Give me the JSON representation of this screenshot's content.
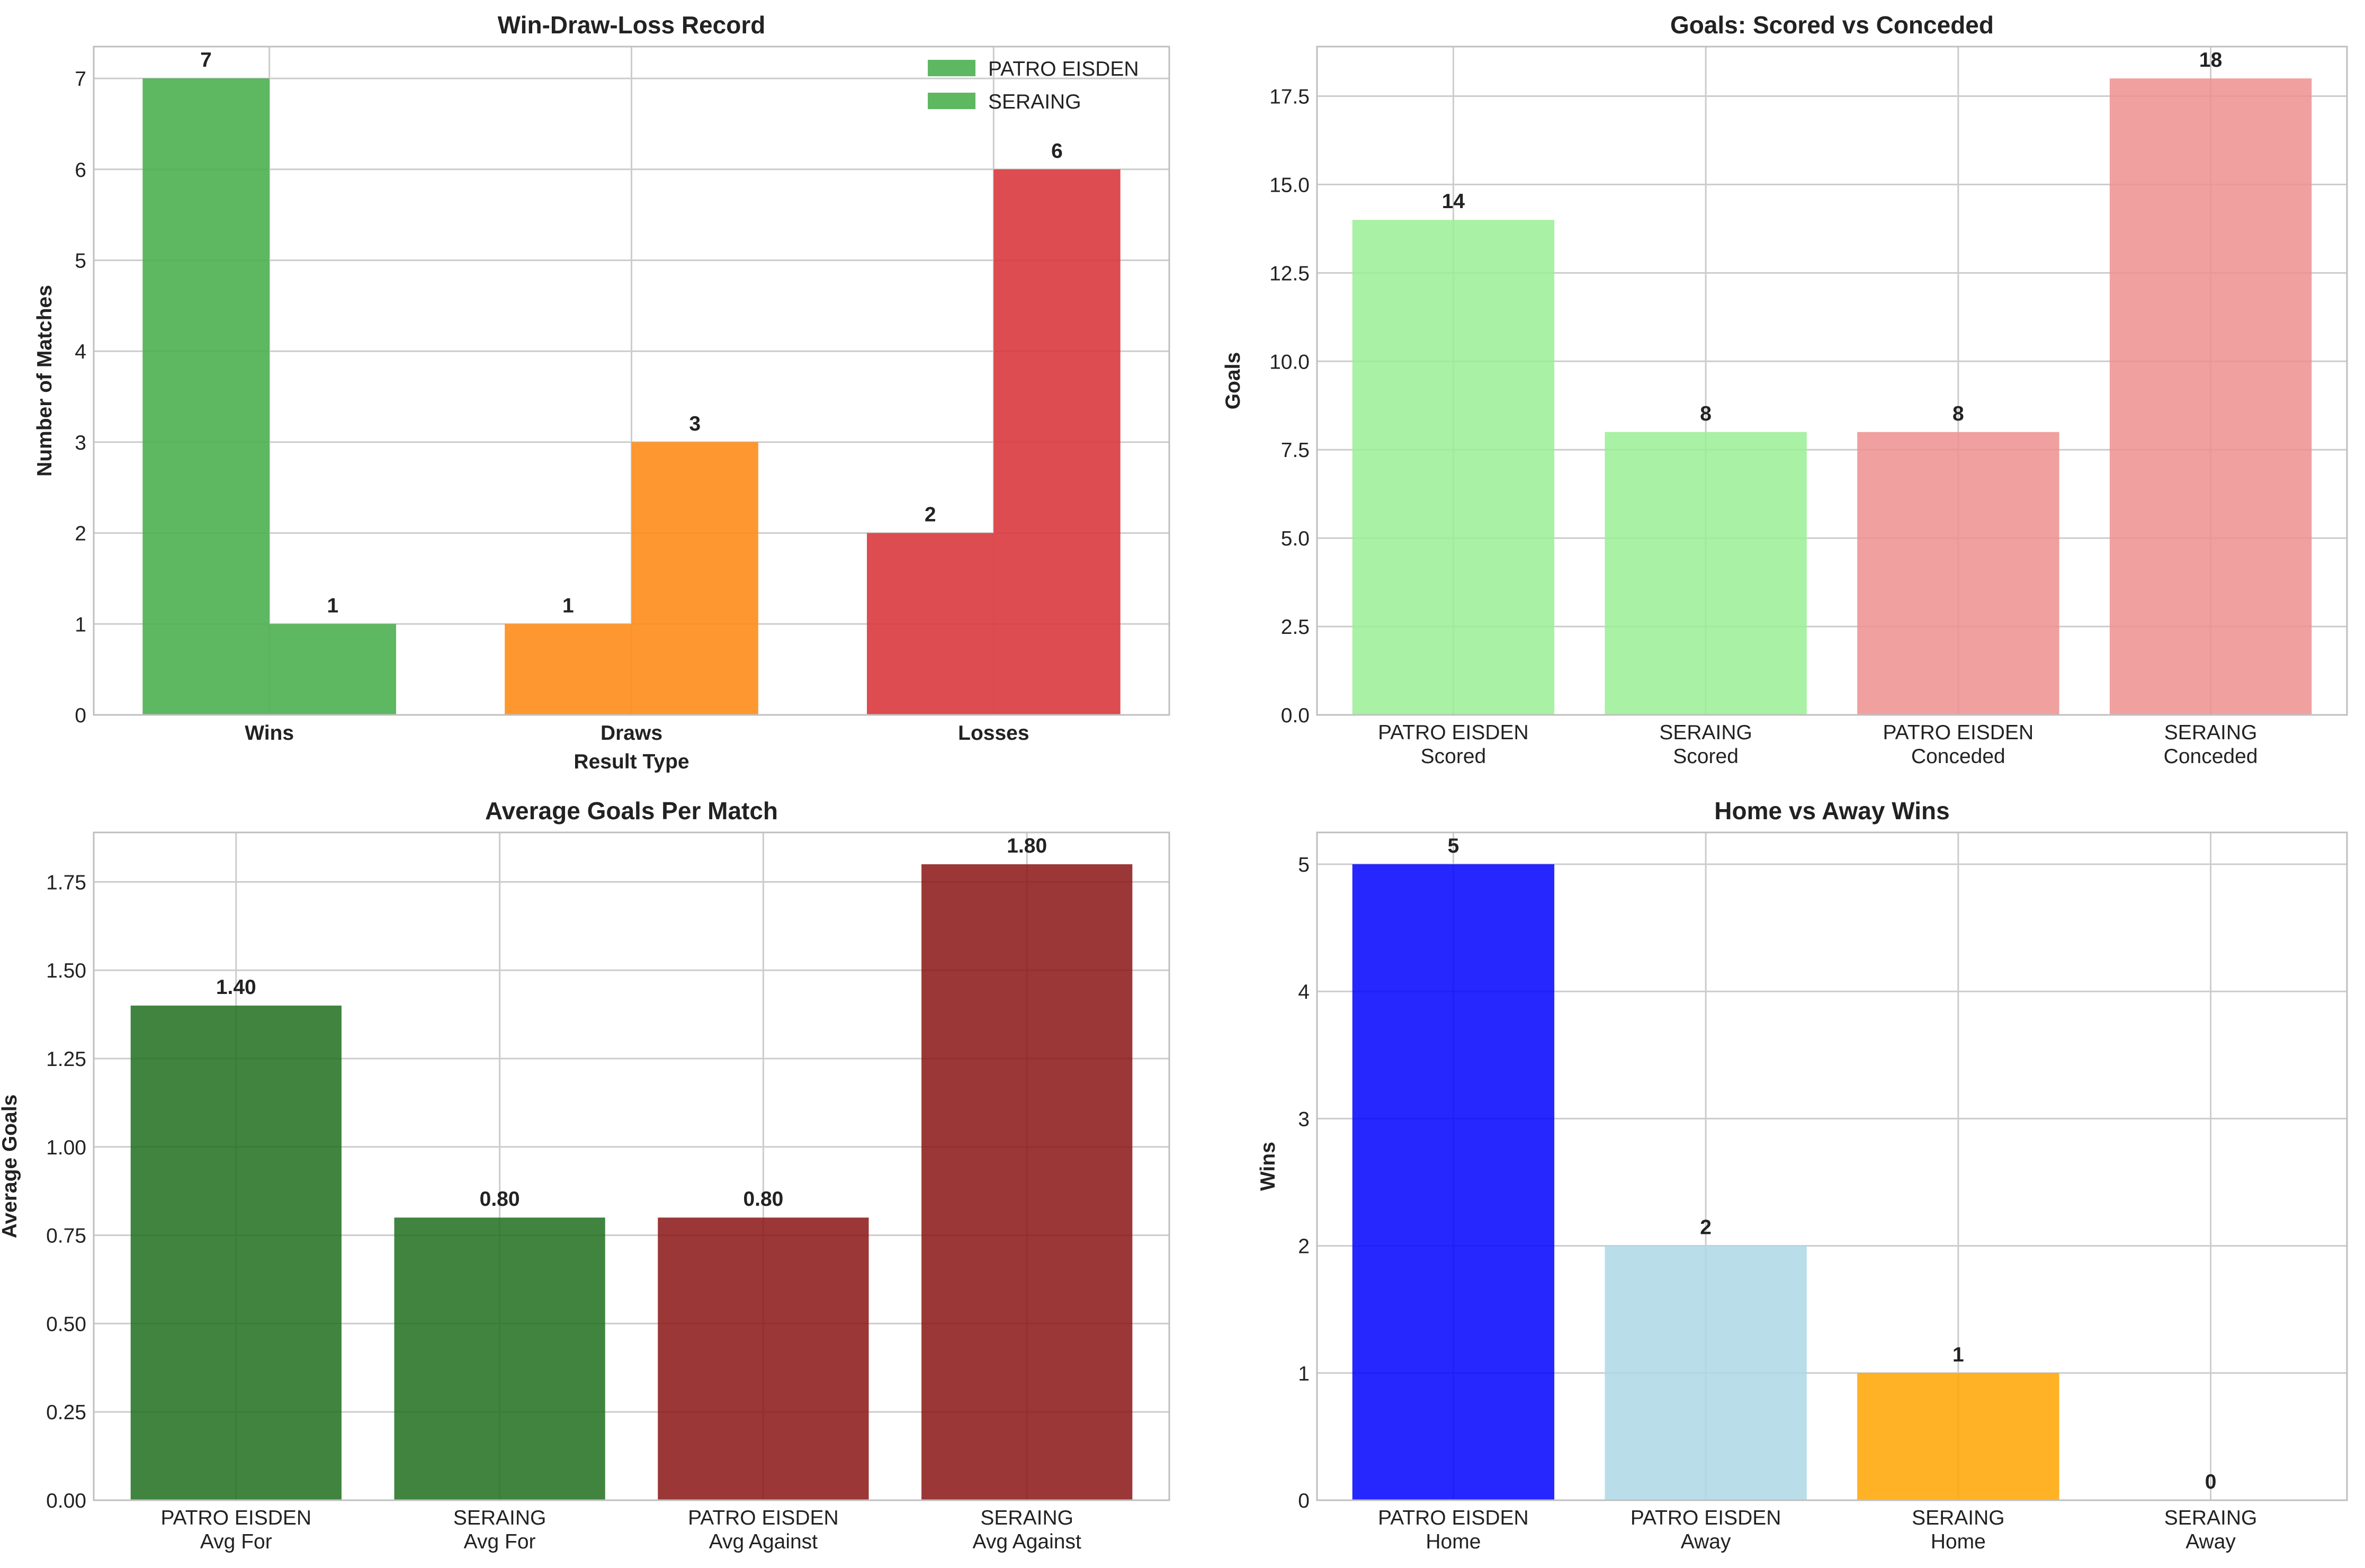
{
  "colors": {
    "grid": "#cccccc",
    "frame": "#bfbfbf",
    "text": "#222222"
  },
  "chart_data": [
    {
      "type": "bar",
      "title": "Win-Draw-Loss Record",
      "xlabel": "Result Type",
      "ylabel": "Number of Matches",
      "categories": [
        "Wins",
        "Draws",
        "Losses"
      ],
      "category_colors": [
        "#4caf50",
        "#ff8c1a",
        "#d9383d"
      ],
      "series": [
        {
          "name": "PATRO EISDEN",
          "values": [
            7,
            1,
            2
          ]
        },
        {
          "name": "SERAING",
          "values": [
            1,
            3,
            6
          ]
        }
      ],
      "value_labels": [
        [
          "7",
          "1",
          "2"
        ],
        [
          "1",
          "3",
          "6"
        ]
      ],
      "legend": {
        "position": "top-right",
        "colors": [
          "#4caf50",
          "#4caf50"
        ]
      },
      "ylim": [
        0,
        7.35
      ],
      "yticks": [
        0,
        1,
        2,
        3,
        4,
        5,
        6,
        7
      ],
      "ytick_labels": [
        "0",
        "1",
        "2",
        "3",
        "4",
        "5",
        "6",
        "7"
      ],
      "grid": true
    },
    {
      "type": "bar",
      "title": "Goals: Scored vs Conceded",
      "xlabel": "",
      "ylabel": "Goals",
      "categories": [
        [
          "PATRO EISDEN",
          "Scored"
        ],
        [
          "SERAING",
          "Scored"
        ],
        [
          "PATRO EISDEN",
          "Conceded"
        ],
        [
          "SERAING",
          "Conceded"
        ]
      ],
      "values": [
        14,
        8,
        8,
        18
      ],
      "value_labels": [
        "14",
        "8",
        "8",
        "18"
      ],
      "colors": [
        "#9aee94",
        "#9aee94",
        "#ef8f8f",
        "#ef8f8f"
      ],
      "ylim": [
        0,
        18.9
      ],
      "yticks": [
        0,
        2.5,
        5,
        7.5,
        10,
        12.5,
        15,
        17.5
      ],
      "ytick_labels": [
        "0.0",
        "2.5",
        "5.0",
        "7.5",
        "10.0",
        "12.5",
        "15.0",
        "17.5"
      ],
      "grid": true
    },
    {
      "type": "bar",
      "title": "Average Goals Per Match",
      "xlabel": "",
      "ylabel": "Average Goals",
      "categories": [
        [
          "PATRO EISDEN",
          "Avg For"
        ],
        [
          "SERAING",
          "Avg For"
        ],
        [
          "PATRO EISDEN",
          "Avg Against"
        ],
        [
          "SERAING",
          "Avg Against"
        ]
      ],
      "values": [
        1.4,
        0.8,
        0.8,
        1.8
      ],
      "value_labels": [
        "1.40",
        "0.80",
        "0.80",
        "1.80"
      ],
      "colors": [
        "#1e6e1e",
        "#1e6e1e",
        "#8b1414",
        "#8b1414"
      ],
      "ylim": [
        0,
        1.89
      ],
      "yticks": [
        0,
        0.25,
        0.5,
        0.75,
        1.0,
        1.25,
        1.5,
        1.75
      ],
      "ytick_labels": [
        "0.00",
        "0.25",
        "0.50",
        "0.75",
        "1.00",
        "1.25",
        "1.50",
        "1.75"
      ],
      "grid": true
    },
    {
      "type": "bar",
      "title": "Home vs Away Wins",
      "xlabel": "",
      "ylabel": "Wins",
      "categories": [
        [
          "PATRO EISDEN",
          "Home"
        ],
        [
          "PATRO EISDEN",
          "Away"
        ],
        [
          "SERAING",
          "Home"
        ],
        [
          "SERAING",
          "Away"
        ]
      ],
      "values": [
        5,
        2,
        1,
        0
      ],
      "value_labels": [
        "5",
        "2",
        "1",
        "0"
      ],
      "colors": [
        "#0000ff",
        "#add8e6",
        "#ffa500",
        "#ffa500"
      ],
      "ylim": [
        0,
        5.25
      ],
      "yticks": [
        0,
        1,
        2,
        3,
        4,
        5
      ],
      "ytick_labels": [
        "0",
        "1",
        "2",
        "3",
        "4",
        "5"
      ],
      "grid": true
    }
  ]
}
